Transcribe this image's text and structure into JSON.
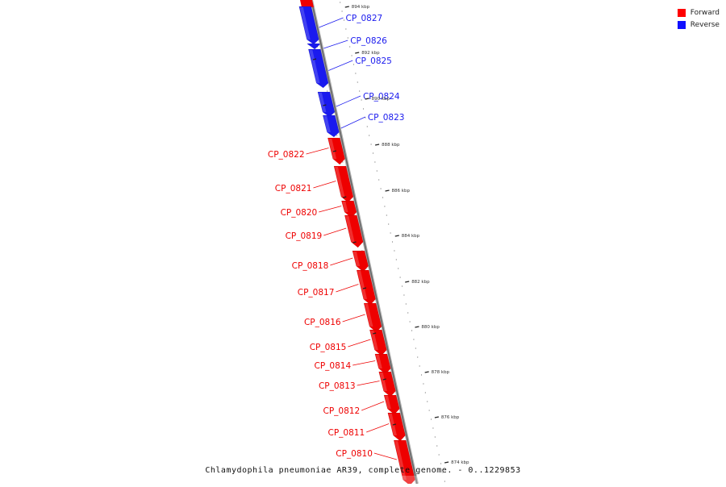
{
  "legend": {
    "items": [
      {
        "label": "Forward",
        "color": "#ff0000"
      },
      {
        "label": "Reverse",
        "color": "#1010ff"
      }
    ]
  },
  "caption": "Chlamydophila pneumoniae AR39, complete genome. - 0..1229853",
  "colors": {
    "forward": "#ee0000",
    "reverse": "#1a1aee",
    "backbone": "#888888"
  },
  "genes": [
    {
      "id": "CP_0827",
      "strand": "reverse"
    },
    {
      "id": "CP_0826",
      "strand": "reverse"
    },
    {
      "id": "CP_0825",
      "strand": "reverse"
    },
    {
      "id": "CP_0824",
      "strand": "reverse"
    },
    {
      "id": "CP_0823",
      "strand": "reverse"
    },
    {
      "id": "CP_0822",
      "strand": "forward"
    },
    {
      "id": "CP_0821",
      "strand": "forward"
    },
    {
      "id": "CP_0820",
      "strand": "forward"
    },
    {
      "id": "CP_0819",
      "strand": "forward"
    },
    {
      "id": "CP_0818",
      "strand": "forward"
    },
    {
      "id": "CP_0817",
      "strand": "forward"
    },
    {
      "id": "CP_0816",
      "strand": "forward"
    },
    {
      "id": "CP_0815",
      "strand": "forward"
    },
    {
      "id": "CP_0814",
      "strand": "forward"
    },
    {
      "id": "CP_0813",
      "strand": "forward"
    },
    {
      "id": "CP_0812",
      "strand": "forward"
    },
    {
      "id": "CP_0811",
      "strand": "forward"
    },
    {
      "id": "CP_0810",
      "strand": "forward"
    }
  ],
  "ticks": [
    "894 kbp",
    "892 kbp",
    "890 kbp",
    "888 kbp",
    "886 kbp",
    "884 kbp",
    "882 kbp",
    "880 kbp",
    "878 kbp",
    "876 kbp",
    "874 kbp"
  ]
}
